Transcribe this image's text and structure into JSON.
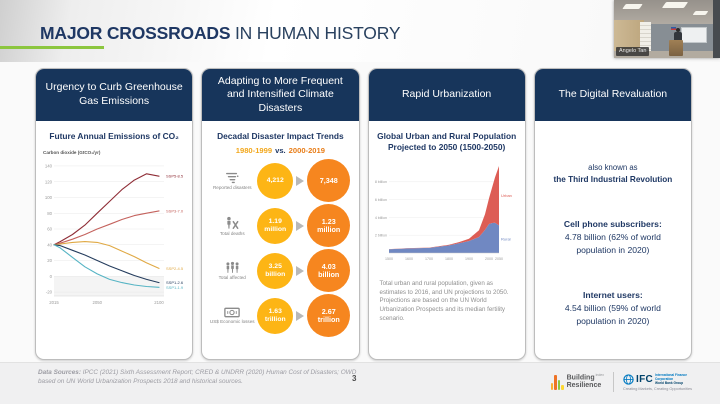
{
  "slide": {
    "title_emphasis": "MAJOR CROSSROADS",
    "title_rest": " IN HUMAN HISTORY",
    "page_number": "3"
  },
  "webcam": {
    "participant_name": "Angelo Tan"
  },
  "cards": [
    {
      "header": "Urgency to Curb Greenhouse Gas Emissions",
      "subtitle": "Future Annual Emissions of CO₂"
    },
    {
      "header": "Adapting to More Frequent and Intensified Climate Disasters",
      "subtitle": "Decadal Disaster Impact Trends",
      "period_before": "1980-1999",
      "vs": "vs.",
      "period_after": "2000-2019",
      "rows": [
        {
          "label": "Reported disasters",
          "icon": "storm-icon",
          "before": "4,212",
          "after": "7,348"
        },
        {
          "label": "Total deaths",
          "icon": "deaths-icon",
          "before": "1.19 million",
          "after": "1.23 million"
        },
        {
          "label": "Total affected",
          "icon": "people-icon",
          "before": "3.25 billion",
          "after": "4.03 billion"
        },
        {
          "label": "US$ Economic losses",
          "icon": "banknote-icon",
          "before": "1.63 trillion",
          "after": "2.67 trillion"
        }
      ]
    },
    {
      "header": "Rapid Urbanization",
      "subtitle": "Global Urban and Rural Population Projected to 2050 (1500-2050)",
      "caption": "Total urban and rural population, given as estimates to 2016, and UN projections to 2050. Projections are based on the UN World Urbanization Prospects and its median fertility scenario."
    },
    {
      "header": "The Digital Revaluation",
      "aka_prefix": "also known as",
      "aka_bold": "the Third Industrial Revolution",
      "stats": [
        {
          "label": "Cell phone subscribers:",
          "value": "4.78 billion (62% of world population in 2020)"
        },
        {
          "label": "Internet users:",
          "value": "4.54 billion (59% of world population in 2020)"
        }
      ]
    }
  ],
  "footer": {
    "sources_label": "Data Sources:",
    "sources_text": " IPCC (2021) Sixth Assessment Report; CRED & UNDRR (2020) Human Cost of Disasters; OWD based on UN World Urbanization Prospects 2018 and historical sources.",
    "logos": {
      "bri_line1": "Building",
      "bri_sup": "index",
      "bri_line2": "Resilience",
      "ifc_acronym": "IFC",
      "ifc_org": "International Finance Corporation",
      "ifc_group": "World Bank Group",
      "ifc_tagline": "Creating Markets, Creating Opportunities"
    }
  },
  "colors": {
    "navy": "#17355B",
    "accent_green": "#8CC63F",
    "stat_yellow": "#FDB515",
    "stat_orange": "#F6861F"
  },
  "chart_data": [
    {
      "id": "co2-emissions",
      "type": "line",
      "title": "Carbon dioxide (GtCO₂/yr)",
      "x": [
        2015,
        2020,
        2030,
        2040,
        2050,
        2060,
        2070,
        2080,
        2090,
        2100
      ],
      "series": [
        {
          "name": "SSP5-8.5",
          "color": "#8F2D36",
          "values": [
            40,
            44,
            53,
            65,
            80,
            95,
            110,
            122,
            130,
            127
          ]
        },
        {
          "name": "SSP3-7.0",
          "color": "#C4625D",
          "values": [
            40,
            42,
            47,
            53,
            60,
            66,
            72,
            77,
            80,
            83
          ]
        },
        {
          "name": "SSP2-4.5",
          "color": "#E0A944",
          "values": [
            40,
            41,
            43,
            44,
            43,
            39,
            32,
            25,
            17,
            10
          ]
        },
        {
          "name": "SSP1-2.6",
          "color": "#253D5E",
          "values": [
            40,
            39,
            33,
            27,
            20,
            13,
            7,
            1,
            -4,
            -8
          ]
        },
        {
          "name": "SSP1-1.9",
          "color": "#56B4C4",
          "values": [
            40,
            36,
            24,
            12,
            3,
            -4,
            -8,
            -11,
            -13,
            -14
          ]
        }
      ],
      "ylim": [
        -25,
        145
      ],
      "yticks": [
        -20,
        0,
        20,
        40,
        60,
        80,
        100,
        120,
        140
      ],
      "xticks": [
        2015,
        2050,
        2100
      ],
      "grid": true,
      "legend_position": "right-of-line-ends"
    },
    {
      "id": "urban-rural-population",
      "type": "area",
      "stacked": true,
      "x": [
        1500,
        1600,
        1700,
        1800,
        1850,
        1900,
        1950,
        1980,
        2000,
        2016,
        2030,
        2050
      ],
      "series": [
        {
          "name": "Rural",
          "color": "#7088C2",
          "values": [
            0.42,
            0.52,
            0.57,
            0.85,
            1.1,
            1.35,
            1.8,
            2.6,
            3.26,
            3.37,
            3.4,
            3.1
          ]
        },
        {
          "name": "Urban",
          "color": "#DD5D55",
          "values": [
            0.02,
            0.03,
            0.04,
            0.07,
            0.13,
            0.25,
            0.75,
            1.75,
            2.87,
            4.03,
            5.1,
            6.68
          ]
        }
      ],
      "ylim": [
        0,
        10
      ],
      "yticks": [
        2,
        4,
        6,
        8
      ],
      "ytick_suffix": " billion",
      "xticks": [
        1500,
        1600,
        1700,
        1800,
        1900,
        2000,
        2050
      ],
      "grid": true,
      "legend_position": "right-of-area-ends"
    }
  ]
}
